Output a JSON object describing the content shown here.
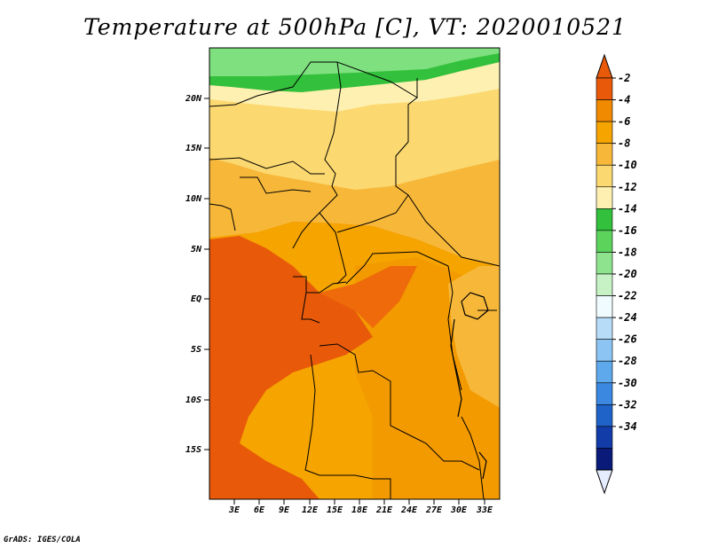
{
  "title": "Temperature at 500hPa [C], VT: 2020010521",
  "credit": "GrADS: IGES/COLA",
  "map": {
    "lat_labels": [
      "20N",
      "15N",
      "10N",
      "5N",
      "EQ",
      "5S",
      "10S",
      "15S"
    ],
    "lon_labels": [
      "3E",
      "6E",
      "9E",
      "12E",
      "15E",
      "18E",
      "21E",
      "24E",
      "27E",
      "30E",
      "33E"
    ]
  },
  "legend": {
    "labels": [
      "-2",
      "-4",
      "-6",
      "-8",
      "-10",
      "-12",
      "-14",
      "-16",
      "-18",
      "-20",
      "-22",
      "-24",
      "-26",
      "-28",
      "-30",
      "-32",
      "-34"
    ],
    "colors": [
      "#e85a0a",
      "#f08a00",
      "#f5a400",
      "#f7b83a",
      "#fbd870",
      "#fdf0b0",
      "#33c03c",
      "#5cd45c",
      "#8ee48e",
      "#c6f2c6",
      "#f0fbff",
      "#b6dcf8",
      "#8cc4f4",
      "#5ea8ec",
      "#3a88e0",
      "#1f62c8",
      "#123ca8",
      "#0a1a78"
    ],
    "cap_top_color": "#e85a0a",
    "cap_bottom_color": "#e6ecff"
  }
}
